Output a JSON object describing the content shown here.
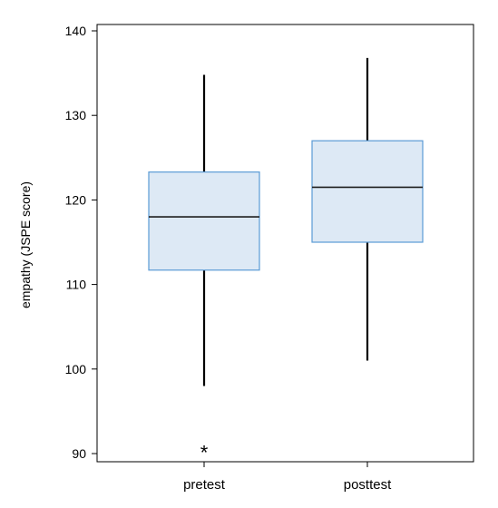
{
  "chart_data": {
    "type": "box",
    "title": "",
    "xlabel": "",
    "ylabel": "empathy (JSPE score)",
    "ylim": [
      89,
      142
    ],
    "yticks": [
      90,
      100,
      110,
      120,
      130,
      140
    ],
    "grid": false,
    "categories": [
      "pretest",
      "posttest"
    ],
    "boxes": [
      {
        "category": "pretest",
        "whisker_low": 98,
        "q1": 111.7,
        "median": 118,
        "q3": 123.3,
        "whisker_high": 134.8,
        "outliers": [
          90.5
        ]
      },
      {
        "category": "posttest",
        "whisker_low": 101,
        "q1": 115,
        "median": 121.5,
        "q3": 127,
        "whisker_high": 136.8,
        "outliers": []
      }
    ],
    "colors": {
      "box_fill": "#dde9f5",
      "box_stroke": "#5b9bd5",
      "median": "#1f1f1f",
      "whisker": "#000000",
      "axis": "#000000"
    }
  }
}
